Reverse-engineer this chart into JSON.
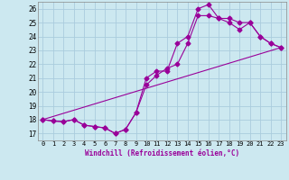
{
  "xlabel": "Windchill (Refroidissement éolien,°C)",
  "bg_color": "#cce8f0",
  "grid_color": "#aaccdd",
  "line_color": "#990099",
  "xlim": [
    -0.5,
    23.5
  ],
  "ylim": [
    16.5,
    26.5
  ],
  "xticks": [
    0,
    1,
    2,
    3,
    4,
    5,
    6,
    7,
    8,
    9,
    10,
    11,
    12,
    13,
    14,
    15,
    16,
    17,
    18,
    19,
    20,
    21,
    22,
    23
  ],
  "yticks": [
    17,
    18,
    19,
    20,
    21,
    22,
    23,
    24,
    25,
    26
  ],
  "line1_x": [
    0,
    1,
    2,
    3,
    4,
    5,
    6,
    7,
    8,
    9,
    10,
    11,
    12,
    13,
    14,
    15,
    16,
    17,
    18,
    19,
    20,
    21,
    22,
    23
  ],
  "line1_y": [
    18.0,
    17.9,
    17.85,
    18.0,
    17.6,
    17.5,
    17.4,
    17.0,
    17.3,
    18.5,
    21.0,
    21.5,
    21.5,
    23.5,
    24.0,
    26.0,
    26.3,
    25.3,
    25.3,
    25.0,
    25.0,
    24.0,
    23.5,
    23.2
  ],
  "line2_x": [
    0,
    1,
    2,
    3,
    4,
    5,
    6,
    7,
    8,
    9,
    10,
    11,
    12,
    13,
    14,
    15,
    16,
    17,
    18,
    19,
    20,
    21,
    22,
    23
  ],
  "line2_y": [
    18.0,
    17.9,
    17.85,
    18.0,
    17.6,
    17.5,
    17.4,
    17.0,
    17.3,
    18.5,
    20.5,
    21.2,
    21.7,
    22.0,
    23.5,
    25.5,
    25.5,
    25.3,
    25.0,
    24.5,
    25.0,
    24.0,
    23.5,
    23.2
  ],
  "line3_x": [
    0,
    23
  ],
  "line3_y": [
    18.0,
    23.2
  ],
  "markersize": 2.5,
  "linewidth": 0.8
}
